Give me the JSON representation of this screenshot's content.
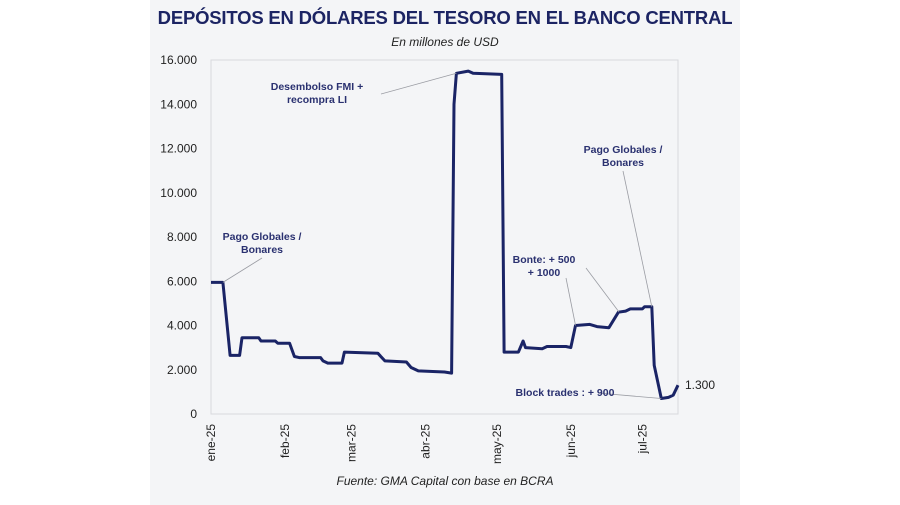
{
  "chart_data": {
    "type": "line",
    "title": "DEPÓSITOS EN DÓLARES DEL TESORO EN EL BANCO CENTRAL",
    "subtitle": "En millones de USD",
    "source": "Fuente: GMA Capital con base en BCRA",
    "ylim": [
      0,
      16000
    ],
    "y_ticks": [
      0,
      2000,
      4000,
      6000,
      8000,
      10000,
      12000,
      14000,
      16000
    ],
    "y_tick_labels": [
      "0",
      "2.000",
      "4.000",
      "6.000",
      "8.000",
      "10.000",
      "12.000",
      "14.000",
      "16.000"
    ],
    "x_ticks": [
      "2025-01-01",
      "2025-02-01",
      "2025-03-01",
      "2025-04-01",
      "2025-05-01",
      "2025-06-01",
      "2025-07-01"
    ],
    "x_tick_labels": [
      "ene-25",
      "feb-25",
      "mar-25",
      "abr-25",
      "may-25",
      "jun-25",
      "jul-25"
    ],
    "xlim": [
      "2025-01-01",
      "2025-07-16"
    ],
    "grid": false,
    "line_color": "#1a2466",
    "series": [
      {
        "x": [
          "2025-01-01",
          "2025-01-06",
          "2025-01-09",
          "2025-01-13",
          "2025-01-14",
          "2025-01-21",
          "2025-01-22",
          "2025-01-28",
          "2025-01-29",
          "2025-02-03",
          "2025-02-05",
          "2025-02-07",
          "2025-02-16",
          "2025-02-17",
          "2025-02-19",
          "2025-02-25",
          "2025-02-26",
          "2025-03-12",
          "2025-03-15",
          "2025-03-24",
          "2025-03-26",
          "2025-03-29",
          "2025-04-09",
          "2025-04-12",
          "2025-04-13",
          "2025-04-14",
          "2025-04-19",
          "2025-04-21",
          "2025-05-03",
          "2025-05-04",
          "2025-05-10",
          "2025-05-12",
          "2025-05-13",
          "2025-05-20",
          "2025-05-22",
          "2025-05-30",
          "2025-06-01",
          "2025-06-03",
          "2025-06-09",
          "2025-06-12",
          "2025-06-17",
          "2025-06-21",
          "2025-06-24",
          "2025-06-26",
          "2025-07-01",
          "2025-07-02",
          "2025-07-05",
          "2025-07-06",
          "2025-07-09",
          "2025-07-12",
          "2025-07-14",
          "2025-07-16"
        ],
        "values": [
          5950,
          5950,
          2650,
          2650,
          3450,
          3450,
          3300,
          3300,
          3200,
          3200,
          2600,
          2550,
          2550,
          2400,
          2300,
          2300,
          2800,
          2750,
          2400,
          2350,
          2100,
          1950,
          1900,
          1850,
          14000,
          15400,
          15500,
          15400,
          15350,
          2800,
          2800,
          3300,
          3000,
          2950,
          3050,
          3050,
          3000,
          4000,
          4050,
          3950,
          3900,
          4600,
          4650,
          4750,
          4750,
          4850,
          4850,
          2200,
          700,
          750,
          850,
          1300
        ]
      }
    ],
    "end_label": "1.300",
    "annotations": [
      {
        "lines": [
          "Desembolso FMI +",
          "recompra LI"
        ],
        "date": "2025-04-14",
        "value": 15400
      },
      {
        "lines": [
          "Pago Globales /",
          "Bonares"
        ],
        "date": "2025-01-06",
        "value": 5950
      },
      {
        "lines": [
          "Pago Globales /",
          "Bonares"
        ],
        "date": "2025-07-05",
        "value": 4850
      },
      {
        "lines": [
          "Bonte: + 500",
          "+ 1000"
        ],
        "date": "2025-06-03",
        "value": 4000
      },
      {
        "lines": [
          "Block trades : + 900"
        ],
        "date": "2025-07-09",
        "value": 700
      }
    ]
  }
}
